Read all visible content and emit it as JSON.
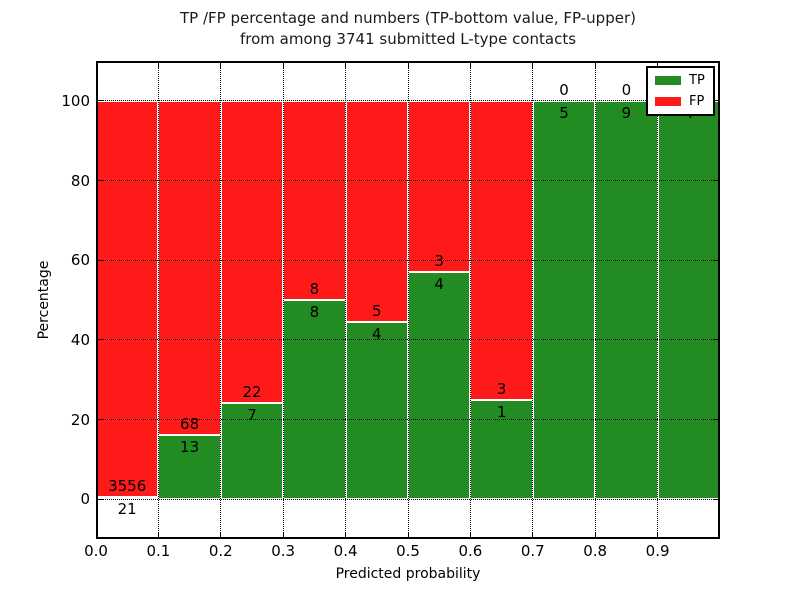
{
  "chart_data": {
    "type": "bar",
    "stacked": true,
    "normalized": "percent",
    "title_line1": "TP /FP percentage and numbers (TP-bottom value, FP-upper)",
    "title_line2": "from among 3741 submitted L-type contacts",
    "xlabel": "Predicted probability",
    "ylabel": "Percentage",
    "xlim": [
      0.0,
      1.0
    ],
    "ylim": [
      -10,
      110
    ],
    "x_tick_labels": [
      "0.0",
      "0.1",
      "0.2",
      "0.3",
      "0.4",
      "0.5",
      "0.6",
      "0.7",
      "0.8",
      "0.9"
    ],
    "y_tick_values": [
      0,
      20,
      40,
      60,
      80,
      100
    ],
    "grid": "dotted",
    "legend_position": "upper right",
    "categories": [
      "0.0-0.1",
      "0.1-0.2",
      "0.2-0.3",
      "0.3-0.4",
      "0.4-0.5",
      "0.5-0.6",
      "0.6-0.7",
      "0.7-0.8",
      "0.8-0.9",
      "0.9-1.0"
    ],
    "series": [
      {
        "name": "TP",
        "color": "#228b22",
        "counts": [
          21,
          13,
          7,
          8,
          4,
          4,
          1,
          5,
          9,
          4
        ],
        "pct_of_bin": [
          0.59,
          16.05,
          24.14,
          50.0,
          44.44,
          57.14,
          25.0,
          100.0,
          100.0,
          100.0
        ]
      },
      {
        "name": "FP",
        "color": "#ff1a1a",
        "counts": [
          3556,
          68,
          22,
          8,
          5,
          3,
          3,
          0,
          0,
          null
        ],
        "pct_of_bin": [
          99.41,
          83.95,
          75.86,
          50.0,
          55.56,
          42.86,
          75.0,
          0.0,
          0.0,
          0.0
        ]
      }
    ],
    "bar_labels": {
      "fp": [
        "3556",
        "68",
        "22",
        "8",
        "5",
        "3",
        "3",
        "0",
        "0",
        ""
      ],
      "tp": [
        "21",
        "13",
        "7",
        "8",
        "4",
        "4",
        "1",
        "5",
        "9",
        "4"
      ]
    }
  }
}
